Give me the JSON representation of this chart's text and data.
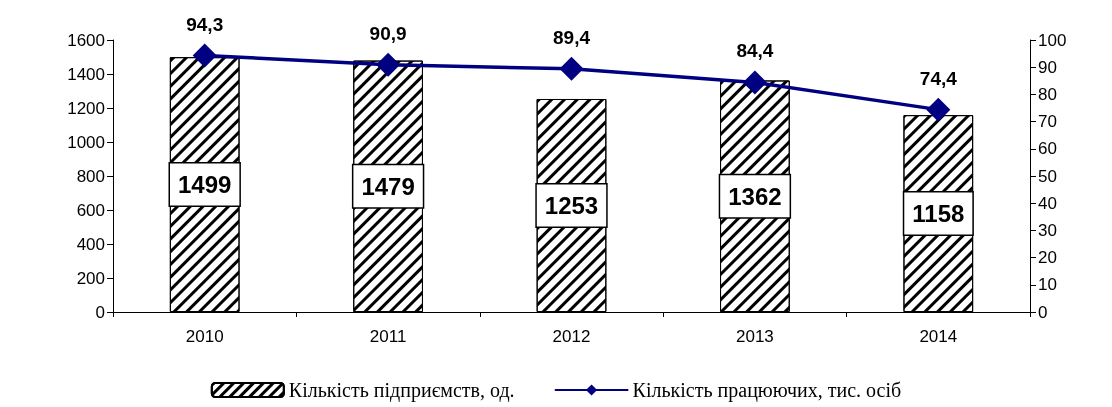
{
  "chart_data": {
    "type": "bar",
    "categories": [
      "2010",
      "2011",
      "2012",
      "2013",
      "2014"
    ],
    "series": [
      {
        "name": "Кількість підприємств, од.",
        "color": "#000000",
        "values": [
          1499,
          1479,
          1253,
          1362,
          1158
        ],
        "value_labels": [
          "1499",
          "1479",
          "1253",
          "1362",
          "1158"
        ]
      },
      {
        "name": "Кількість працюючих, тис. осіб",
        "type": "line",
        "axis": "y2",
        "color": "#000080",
        "values": [
          94.3,
          90.9,
          89.4,
          84.4,
          74.4
        ],
        "value_labels": [
          "94,3",
          "90,9",
          "89,4",
          "84,4",
          "74,4"
        ]
      }
    ],
    "ylim": [
      0,
      1600
    ],
    "yticks": [
      0,
      200,
      400,
      600,
      800,
      1000,
      1200,
      1400,
      1600
    ],
    "y2lim": [
      0,
      100
    ],
    "y2ticks": [
      0,
      10,
      20,
      30,
      40,
      50,
      60,
      70,
      80,
      90,
      100
    ],
    "grid": false,
    "legend": "bottom",
    "marker": "diamond",
    "line_style": "solid"
  }
}
